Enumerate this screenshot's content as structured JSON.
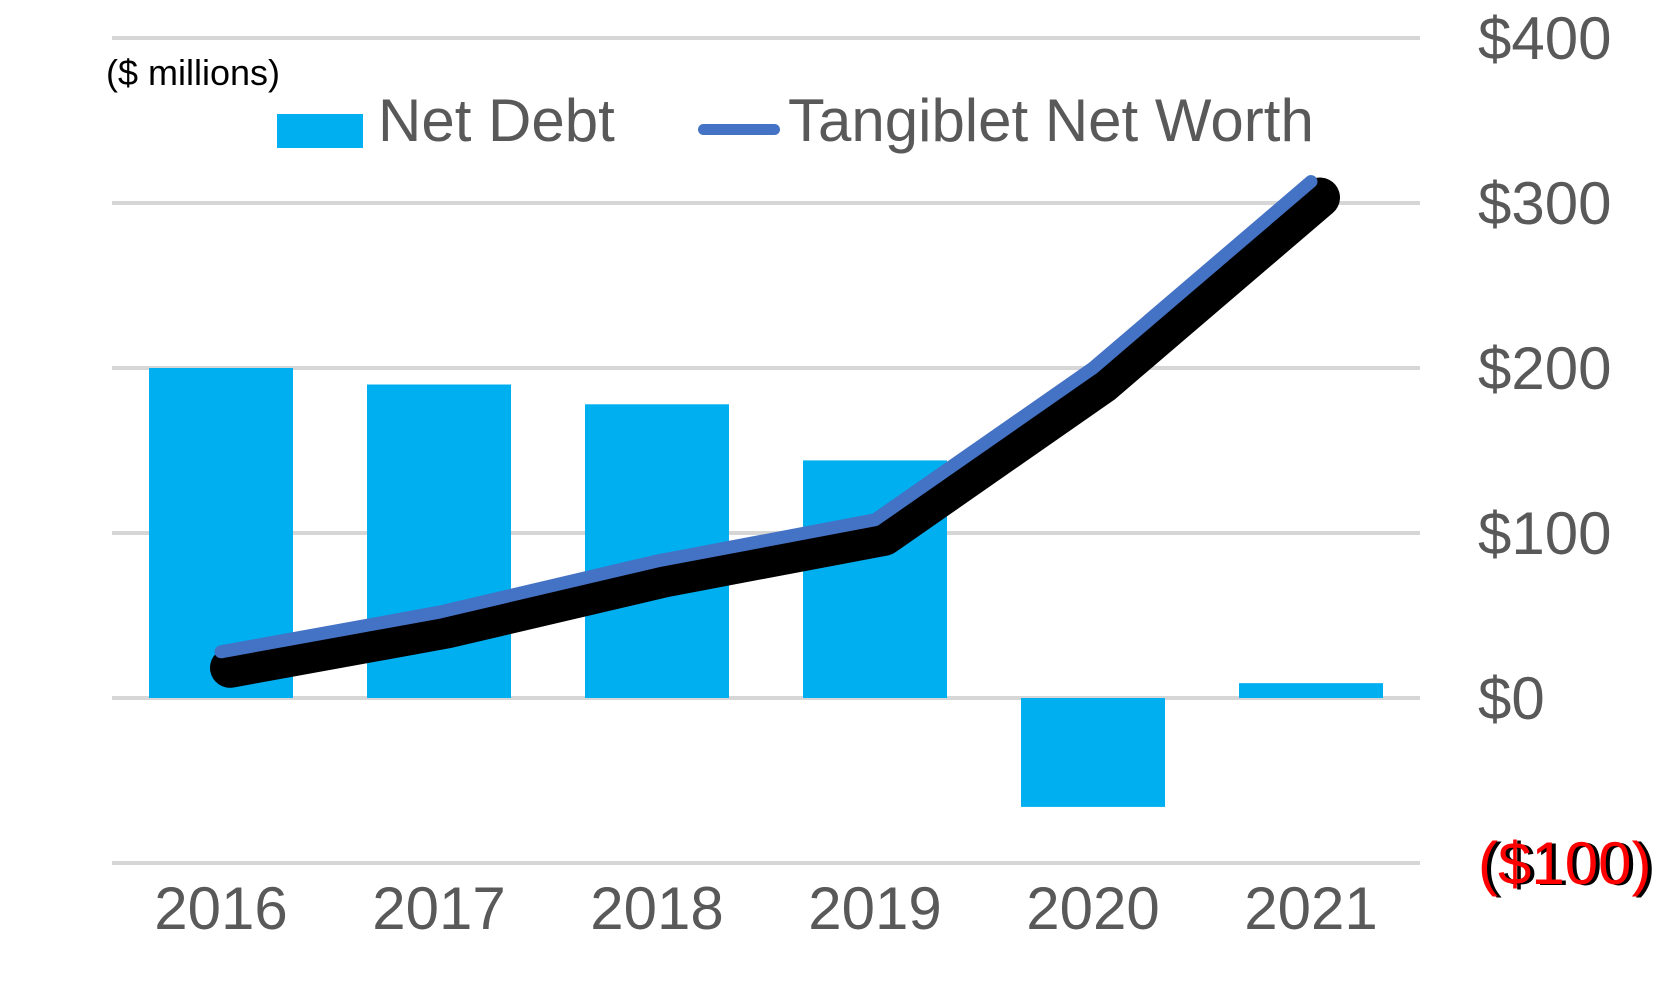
{
  "chart_data": {
    "type": "bar+line combo",
    "title": "",
    "units_label": "($ millions)",
    "categories": [
      "2016",
      "2017",
      "2018",
      "2019",
      "2020",
      "2021"
    ],
    "series": [
      {
        "name": "Net Debt",
        "type": "bar",
        "color": "#00AFF0",
        "values": [
          200,
          190,
          178,
          144,
          -66,
          9
        ]
      },
      {
        "name": "Tangiblet Net Worth",
        "type": "line",
        "color": "#4472C4",
        "shadow_color": "#000000",
        "values": [
          28,
          52,
          83,
          108,
          200,
          313
        ]
      }
    ],
    "xlabel": "",
    "ylabel": "($ millions)",
    "ylim": [
      -100,
      400
    ],
    "y_ticks": [
      {
        "label": "$400",
        "value": 400,
        "color": "#595959"
      },
      {
        "label": "$300",
        "value": 300,
        "color": "#595959"
      },
      {
        "label": "$200",
        "value": 200,
        "color": "#595959"
      },
      {
        "label": "$100",
        "value": 100,
        "color": "#595959"
      },
      {
        "label": "$0",
        "value": 0,
        "color": "#595959"
      },
      {
        "label": "($100)",
        "value": -100,
        "color": "#FF0000"
      }
    ],
    "grid": true,
    "gridline_color": "#D6D6D6",
    "axis_text_color": "#595959",
    "legend_position": "top",
    "legend": [
      {
        "label": "Net Debt",
        "swatch": "bar",
        "color": "#00AFF0"
      },
      {
        "label": "Tangiblet Net Worth",
        "swatch": "line",
        "color": "#4472C4"
      }
    ]
  }
}
